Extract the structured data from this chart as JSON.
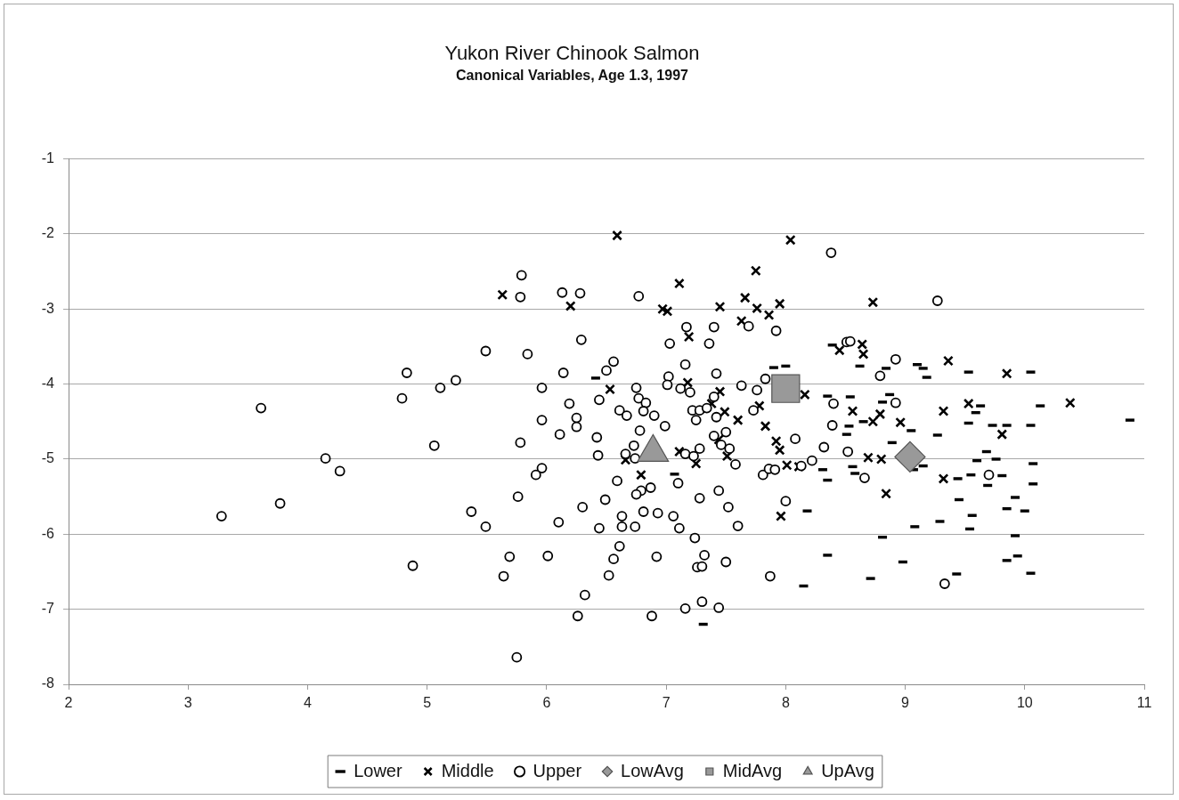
{
  "chart_data": {
    "type": "scatter",
    "title": "Yukon River Chinook Salmon",
    "subtitle": "Canonical Variables, Age 1.3, 1997",
    "xlim": [
      2,
      11
    ],
    "ylim": [
      -8,
      -1
    ],
    "xticks": [
      2,
      3,
      4,
      5,
      6,
      7,
      8,
      9,
      10,
      11
    ],
    "yticks": [
      -8,
      -7,
      -6,
      -5,
      -4,
      -3,
      -2,
      -1
    ],
    "grid": "y",
    "legend": "bottom",
    "series": [
      {
        "name": "Lower",
        "color": "#000000",
        "x": [
          6.41,
          7.9,
          8.0,
          8.35,
          8.31,
          8.35,
          7.07,
          8.18,
          8.35,
          8.15,
          7.31,
          8.39,
          8.62,
          8.84,
          9.1,
          9.15,
          9.18,
          9.53,
          10.05,
          8.54,
          8.81,
          8.87,
          8.65,
          8.53,
          8.51,
          9.63,
          9.59,
          9.53,
          9.73,
          9.85,
          10.05,
          10.13,
          10.88,
          9.05,
          9.27,
          8.89,
          9.15,
          9.07,
          9.68,
          9.76,
          9.6,
          10.07,
          8.56,
          8.58,
          9.44,
          9.55,
          9.81,
          9.69,
          10.07,
          9.45,
          9.92,
          9.85,
          10.0,
          9.56,
          9.29,
          9.08,
          9.54,
          8.81,
          9.92,
          8.98,
          9.94,
          9.85,
          8.71,
          9.43,
          10.05
        ],
        "values": [
          -3.92,
          -3.78,
          -3.76,
          -4.16,
          -5.14,
          -5.28,
          -5.2,
          -5.69,
          -6.28,
          -6.69,
          -7.2,
          -3.48,
          -3.76,
          -3.79,
          -3.74,
          -3.79,
          -3.91,
          -3.84,
          -3.84,
          -4.17,
          -4.24,
          -4.14,
          -4.5,
          -4.56,
          -4.67,
          -4.29,
          -4.38,
          -4.52,
          -4.55,
          -4.55,
          -4.55,
          -4.29,
          -4.48,
          -4.62,
          -4.68,
          -4.78,
          -5.09,
          -5.14,
          -4.9,
          -5.0,
          -5.02,
          -5.06,
          -5.1,
          -5.19,
          -5.26,
          -5.21,
          -5.22,
          -5.35,
          -5.33,
          -5.54,
          -5.51,
          -5.66,
          -5.69,
          -5.75,
          -5.83,
          -5.9,
          -5.93,
          -6.04,
          -6.02,
          -6.37,
          -6.29,
          -6.35,
          -6.59,
          -6.53,
          -6.52
        ]
      },
      {
        "name": "Middle",
        "color": "#000000",
        "marker": "cross",
        "x": [
          6.59,
          5.63,
          6.2,
          6.53,
          6.66,
          6.79,
          8.04,
          7.75,
          7.11,
          7.66,
          6.97,
          7.01,
          7.45,
          7.76,
          7.95,
          7.86,
          7.63,
          7.19,
          8.16,
          7.18,
          7.45,
          7.78,
          7.38,
          7.49,
          7.6,
          7.83,
          7.44,
          7.92,
          7.95,
          7.11,
          7.25,
          7.51,
          8.01,
          8.11,
          7.96,
          8.73,
          8.45,
          8.64,
          8.65,
          9.36,
          9.85,
          8.56,
          8.79,
          8.73,
          8.96,
          9.32,
          9.53,
          9.81,
          10.38,
          8.69,
          8.8,
          9.32,
          8.84
        ],
        "values": [
          -2.02,
          -2.81,
          -2.96,
          -4.07,
          -5.01,
          -5.21,
          -2.08,
          -2.49,
          -2.66,
          -2.85,
          -3.0,
          -3.03,
          -2.97,
          -2.99,
          -2.93,
          -3.08,
          -3.16,
          -3.37,
          -4.14,
          -3.98,
          -4.1,
          -4.29,
          -4.26,
          -4.37,
          -4.48,
          -4.56,
          -4.74,
          -4.76,
          -4.88,
          -4.9,
          -5.06,
          -4.96,
          -5.08,
          -5.1,
          -5.76,
          -2.91,
          -3.55,
          -3.47,
          -3.6,
          -3.69,
          -3.86,
          -4.36,
          -4.4,
          -4.5,
          -4.51,
          -4.36,
          -4.26,
          -4.67,
          -4.25,
          -4.98,
          -5.0,
          -5.26,
          -5.46
        ]
      },
      {
        "name": "Upper",
        "color": "#000000",
        "marker": "circle",
        "x": [
          3.28,
          3.61,
          3.77,
          4.15,
          4.27,
          4.83,
          4.79,
          5.11,
          5.24,
          5.49,
          5.06,
          5.37,
          5.49,
          4.88,
          5.79,
          5.78,
          6.13,
          6.28,
          6.77,
          5.84,
          6.29,
          6.56,
          6.5,
          6.14,
          5.96,
          6.75,
          6.77,
          6.83,
          6.19,
          6.44,
          6.61,
          6.67,
          6.81,
          6.9,
          5.96,
          6.25,
          6.25,
          6.11,
          6.78,
          6.42,
          5.78,
          6.73,
          6.43,
          6.66,
          6.74,
          5.96,
          5.91,
          6.59,
          6.87,
          6.79,
          6.75,
          5.76,
          6.49,
          6.3,
          6.81,
          6.93,
          6.63,
          6.1,
          6.44,
          6.63,
          6.74,
          6.61,
          5.69,
          6.01,
          6.56,
          6.92,
          5.64,
          6.52,
          6.32,
          6.26,
          6.88,
          5.75,
          8.38,
          7.69,
          7.17,
          7.4,
          7.92,
          7.03,
          7.36,
          7.16,
          7.42,
          7.02,
          7.83,
          7.01,
          7.12,
          7.2,
          7.63,
          7.76,
          7.4,
          8.4,
          7.73,
          7.22,
          7.28,
          7.34,
          7.25,
          7.42,
          8.39,
          6.99,
          7.5,
          7.4,
          7.46,
          8.08,
          8.32,
          7.28,
          7.53,
          7.16,
          7.23,
          7.58,
          8.22,
          8.13,
          7.81,
          7.86,
          7.91,
          7.1,
          7.44,
          7.28,
          8.0,
          7.52,
          7.06,
          7.11,
          7.6,
          7.24,
          7.32,
          7.26,
          7.3,
          7.5,
          7.87,
          7.16,
          7.3,
          7.44,
          9.27,
          8.51,
          8.54,
          8.92,
          8.79,
          8.92,
          8.52,
          8.66,
          9.7,
          9.33
        ],
        "values": [
          -5.76,
          -4.32,
          -5.59,
          -4.99,
          -5.16,
          -3.85,
          -4.19,
          -4.05,
          -3.95,
          -3.56,
          -4.82,
          -5.7,
          -5.9,
          -6.42,
          -2.55,
          -2.84,
          -2.78,
          -2.79,
          -2.83,
          -3.6,
          -3.41,
          -3.7,
          -3.82,
          -3.85,
          -4.05,
          -4.05,
          -4.19,
          -4.25,
          -4.26,
          -4.21,
          -4.35,
          -4.42,
          -4.36,
          -4.42,
          -4.48,
          -4.45,
          -4.57,
          -4.67,
          -4.62,
          -4.71,
          -4.78,
          -4.82,
          -4.95,
          -4.93,
          -4.99,
          -5.12,
          -5.21,
          -5.29,
          -5.38,
          -5.42,
          -5.47,
          -5.5,
          -5.54,
          -5.64,
          -5.7,
          -5.72,
          -5.76,
          -5.84,
          -5.92,
          -5.9,
          -5.9,
          -6.16,
          -6.3,
          -6.29,
          -6.33,
          -6.3,
          -6.56,
          -6.55,
          -6.81,
          -7.09,
          -7.09,
          -7.64,
          -2.25,
          -3.23,
          -3.24,
          -3.24,
          -3.29,
          -3.46,
          -3.46,
          -3.74,
          -3.86,
          -3.9,
          -3.93,
          -4.01,
          -4.06,
          -4.11,
          -4.02,
          -4.08,
          -4.17,
          -4.26,
          -4.35,
          -4.35,
          -4.35,
          -4.32,
          -4.48,
          -4.44,
          -4.55,
          -4.56,
          -4.64,
          -4.69,
          -4.81,
          -4.73,
          -4.84,
          -4.86,
          -4.86,
          -4.93,
          -4.96,
          -5.07,
          -5.02,
          -5.09,
          -5.21,
          -5.13,
          -5.14,
          -5.32,
          -5.42,
          -5.52,
          -5.56,
          -5.64,
          -5.76,
          -5.92,
          -5.89,
          -6.05,
          -6.28,
          -6.44,
          -6.43,
          -6.37,
          -6.56,
          -6.99,
          -6.9,
          -6.98,
          -2.89,
          -3.44,
          -3.43,
          -3.67,
          -3.89,
          -4.25,
          -4.9,
          -5.25,
          -5.21,
          -6.66
        ]
      },
      {
        "name": "LowAvg",
        "color": "#999999",
        "marker": "diamond",
        "x": [
          9.04
        ],
        "values": [
          -4.97
        ]
      },
      {
        "name": "MidAvg",
        "color": "#999999",
        "marker": "square",
        "x": [
          8.0
        ],
        "values": [
          -4.06
        ]
      },
      {
        "name": "UpAvg",
        "color": "#999999",
        "marker": "triangle",
        "x": [
          6.89
        ],
        "values": [
          -4.91
        ]
      }
    ]
  }
}
